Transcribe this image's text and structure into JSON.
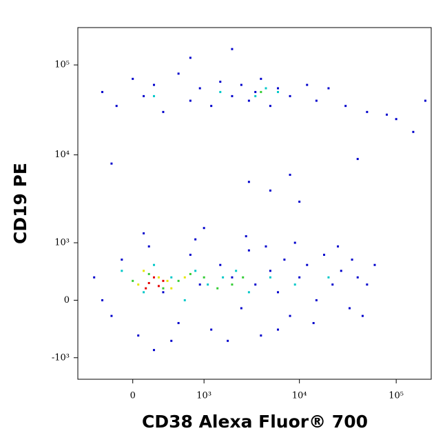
{
  "chart_data": {
    "type": "scatter",
    "x_label": "CD38 Alexa Fluor® 700",
    "y_label": "CD19 PE",
    "xscale": "biexponential",
    "yscale": "biexponential",
    "xlim": [
      -650,
      230000
    ],
    "ylim": [
      -1800,
      260000
    ],
    "xticks": [
      0,
      {
        "value": 1000,
        "label": "10³"
      },
      {
        "value": 10000,
        "label": "10⁴"
      },
      {
        "value": 100000,
        "label": "10⁵"
      }
    ],
    "yticks": [
      {
        "value": -1000,
        "label": "-10³"
      },
      0,
      {
        "value": 1000,
        "label": "10³"
      },
      {
        "value": 10000,
        "label": "10⁴"
      },
      {
        "value": 100000,
        "label": "10⁵"
      }
    ],
    "series": [
      {
        "color": "#0000cc",
        "x": [
          -400,
          -200,
          -100,
          50,
          150,
          300,
          500,
          700,
          900,
          1200,
          1500,
          2000,
          2500,
          3000,
          3500,
          4000,
          5000,
          6000,
          7000,
          8000,
          10000,
          12000,
          15000,
          18000,
          22000,
          27000,
          33000,
          40000,
          50000,
          60000,
          -300,
          100,
          400,
          800,
          1800,
          2800,
          4500,
          9000,
          14000,
          25000,
          35000,
          45000,
          200,
          1000,
          6000,
          -300,
          -150,
          0,
          100,
          200,
          300,
          500,
          700,
          900,
          1200,
          1500,
          2000,
          2500,
          3000,
          3500,
          4000,
          5000,
          6000,
          8000,
          12000,
          15000,
          20000,
          30000,
          50000,
          100000,
          200000,
          150000,
          -200,
          40000,
          3000,
          5000,
          8000,
          10000,
          700,
          2000,
          80000
        ],
        "y": [
          300,
          -200,
          600,
          -500,
          900,
          100,
          -300,
          700,
          200,
          -400,
          500,
          300,
          -100,
          800,
          200,
          -500,
          400,
          100,
          600,
          -200,
          300,
          500,
          0,
          700,
          200,
          400,
          -100,
          300,
          200,
          500,
          0,
          1300,
          -600,
          1100,
          -600,
          1200,
          900,
          1000,
          -300,
          900,
          600,
          -200,
          -800,
          1500,
          -400,
          50000,
          35000,
          70000,
          45000,
          60000,
          30000,
          80000,
          40000,
          55000,
          35000,
          65000,
          45000,
          60000,
          40000,
          50000,
          70000,
          35000,
          55000,
          45000,
          60000,
          40000,
          55000,
          35000,
          30000,
          25000,
          40000,
          18000,
          8000,
          9000,
          5000,
          4000,
          6000,
          3000,
          120000,
          150000,
          28000
        ]
      },
      {
        "color": "#00c8c8",
        "x": [
          -100,
          100,
          200,
          400,
          600,
          800,
          1100,
          1600,
          2200,
          3000,
          5000,
          9000,
          20000,
          3500,
          4500,
          1500,
          200,
          6000
        ],
        "y": [
          400,
          100,
          500,
          300,
          0,
          400,
          200,
          300,
          400,
          100,
          300,
          200,
          300,
          45000,
          55000,
          50000,
          45000,
          50000
        ]
      },
      {
        "color": "#33cc33",
        "x": [
          0,
          150,
          300,
          500,
          700,
          1000,
          1400,
          2000,
          2600,
          4000
        ],
        "y": [
          250,
          350,
          150,
          250,
          350,
          300,
          150,
          200,
          300,
          50000
        ]
      },
      {
        "color": "#e6e600",
        "x": [
          50,
          250,
          400,
          600,
          100,
          350
        ],
        "y": [
          200,
          300,
          150,
          300,
          400,
          250
        ]
      },
      {
        "color": "#e60000",
        "x": [
          150,
          250,
          200,
          300,
          120
        ],
        "y": [
          220,
          180,
          300,
          250,
          150
        ]
      }
    ]
  }
}
